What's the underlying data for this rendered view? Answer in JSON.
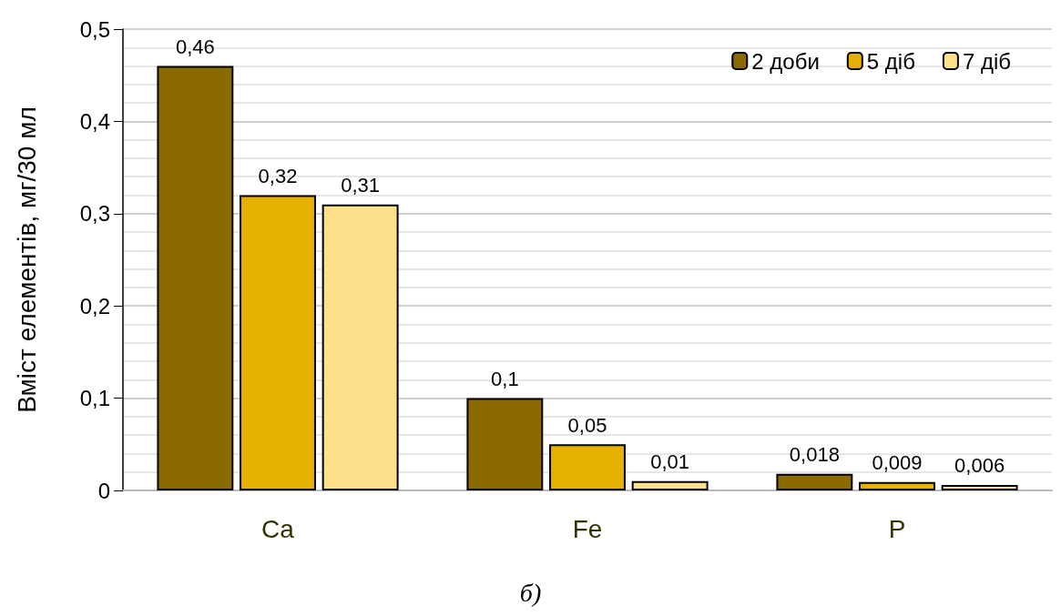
{
  "chart_data": {
    "type": "bar",
    "categories": [
      "Ca",
      "Fe",
      "P"
    ],
    "ylabel": "Вміст елементів, мг/30 мл",
    "ylim": [
      0,
      0.5
    ],
    "yticks": [
      0,
      {
        "value": 0.1,
        "label": "0,1"
      },
      {
        "value": 0.2,
        "label": "0,2"
      },
      {
        "value": 0.3,
        "label": "0,3"
      },
      {
        "value": 0.4,
        "label": "0,4"
      },
      {
        "value": 0.5,
        "label": "0,5"
      }
    ],
    "series": [
      {
        "name": "2 доби",
        "color": "#8b6a00",
        "values": [
          0.46,
          0.1,
          0.018
        ],
        "value_labels": [
          "0,46",
          "0,1",
          "0,018"
        ]
      },
      {
        "name": "5 діб",
        "color": "#e6b000",
        "values": [
          0.32,
          0.05,
          0.009
        ],
        "value_labels": [
          "0,32",
          "0,05",
          "0,009"
        ]
      },
      {
        "name": "7 діб",
        "color": "#ffe08a",
        "values": [
          0.31,
          0.01,
          0.006
        ],
        "value_labels": [
          "0,31",
          "0,01",
          "0,006"
        ]
      }
    ],
    "grid": "y",
    "legend": "top right",
    "annotations": [
      "б)"
    ]
  }
}
